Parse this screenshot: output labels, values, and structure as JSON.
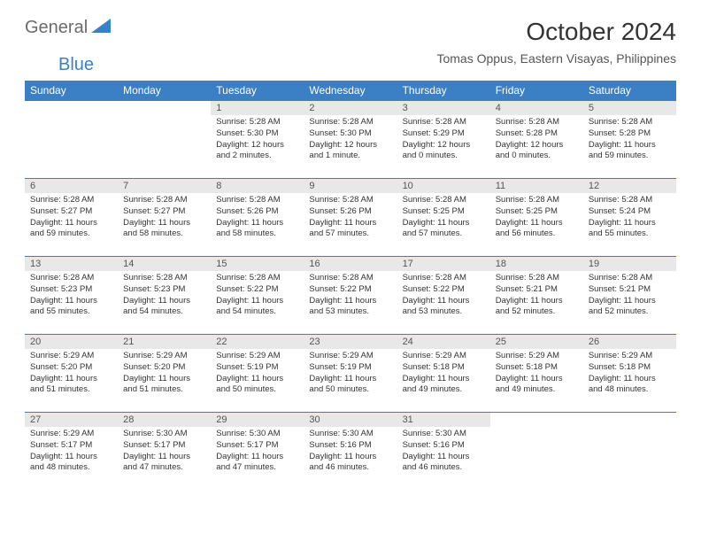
{
  "logo": {
    "text_general": "General",
    "text_blue": "Blue"
  },
  "title": "October 2024",
  "location": "Tomas Oppus, Eastern Visayas, Philippines",
  "colors": {
    "header_bg": "#3b7fc4",
    "header_text": "#ffffff",
    "daynum_bg": "#e8e8e8",
    "border": "#3b7fc4",
    "body_text": "#333333",
    "logo_gray": "#6b6b6b",
    "logo_blue": "#3b7fc4"
  },
  "day_headers": [
    "Sunday",
    "Monday",
    "Tuesday",
    "Wednesday",
    "Thursday",
    "Friday",
    "Saturday"
  ],
  "weeks": [
    [
      {
        "n": "",
        "sunrise": "",
        "sunset": "",
        "daylight": ""
      },
      {
        "n": "",
        "sunrise": "",
        "sunset": "",
        "daylight": ""
      },
      {
        "n": "1",
        "sunrise": "Sunrise: 5:28 AM",
        "sunset": "Sunset: 5:30 PM",
        "daylight": "Daylight: 12 hours and 2 minutes."
      },
      {
        "n": "2",
        "sunrise": "Sunrise: 5:28 AM",
        "sunset": "Sunset: 5:30 PM",
        "daylight": "Daylight: 12 hours and 1 minute."
      },
      {
        "n": "3",
        "sunrise": "Sunrise: 5:28 AM",
        "sunset": "Sunset: 5:29 PM",
        "daylight": "Daylight: 12 hours and 0 minutes."
      },
      {
        "n": "4",
        "sunrise": "Sunrise: 5:28 AM",
        "sunset": "Sunset: 5:28 PM",
        "daylight": "Daylight: 12 hours and 0 minutes."
      },
      {
        "n": "5",
        "sunrise": "Sunrise: 5:28 AM",
        "sunset": "Sunset: 5:28 PM",
        "daylight": "Daylight: 11 hours and 59 minutes."
      }
    ],
    [
      {
        "n": "6",
        "sunrise": "Sunrise: 5:28 AM",
        "sunset": "Sunset: 5:27 PM",
        "daylight": "Daylight: 11 hours and 59 minutes."
      },
      {
        "n": "7",
        "sunrise": "Sunrise: 5:28 AM",
        "sunset": "Sunset: 5:27 PM",
        "daylight": "Daylight: 11 hours and 58 minutes."
      },
      {
        "n": "8",
        "sunrise": "Sunrise: 5:28 AM",
        "sunset": "Sunset: 5:26 PM",
        "daylight": "Daylight: 11 hours and 58 minutes."
      },
      {
        "n": "9",
        "sunrise": "Sunrise: 5:28 AM",
        "sunset": "Sunset: 5:26 PM",
        "daylight": "Daylight: 11 hours and 57 minutes."
      },
      {
        "n": "10",
        "sunrise": "Sunrise: 5:28 AM",
        "sunset": "Sunset: 5:25 PM",
        "daylight": "Daylight: 11 hours and 57 minutes."
      },
      {
        "n": "11",
        "sunrise": "Sunrise: 5:28 AM",
        "sunset": "Sunset: 5:25 PM",
        "daylight": "Daylight: 11 hours and 56 minutes."
      },
      {
        "n": "12",
        "sunrise": "Sunrise: 5:28 AM",
        "sunset": "Sunset: 5:24 PM",
        "daylight": "Daylight: 11 hours and 55 minutes."
      }
    ],
    [
      {
        "n": "13",
        "sunrise": "Sunrise: 5:28 AM",
        "sunset": "Sunset: 5:23 PM",
        "daylight": "Daylight: 11 hours and 55 minutes."
      },
      {
        "n": "14",
        "sunrise": "Sunrise: 5:28 AM",
        "sunset": "Sunset: 5:23 PM",
        "daylight": "Daylight: 11 hours and 54 minutes."
      },
      {
        "n": "15",
        "sunrise": "Sunrise: 5:28 AM",
        "sunset": "Sunset: 5:22 PM",
        "daylight": "Daylight: 11 hours and 54 minutes."
      },
      {
        "n": "16",
        "sunrise": "Sunrise: 5:28 AM",
        "sunset": "Sunset: 5:22 PM",
        "daylight": "Daylight: 11 hours and 53 minutes."
      },
      {
        "n": "17",
        "sunrise": "Sunrise: 5:28 AM",
        "sunset": "Sunset: 5:22 PM",
        "daylight": "Daylight: 11 hours and 53 minutes."
      },
      {
        "n": "18",
        "sunrise": "Sunrise: 5:28 AM",
        "sunset": "Sunset: 5:21 PM",
        "daylight": "Daylight: 11 hours and 52 minutes."
      },
      {
        "n": "19",
        "sunrise": "Sunrise: 5:28 AM",
        "sunset": "Sunset: 5:21 PM",
        "daylight": "Daylight: 11 hours and 52 minutes."
      }
    ],
    [
      {
        "n": "20",
        "sunrise": "Sunrise: 5:29 AM",
        "sunset": "Sunset: 5:20 PM",
        "daylight": "Daylight: 11 hours and 51 minutes."
      },
      {
        "n": "21",
        "sunrise": "Sunrise: 5:29 AM",
        "sunset": "Sunset: 5:20 PM",
        "daylight": "Daylight: 11 hours and 51 minutes."
      },
      {
        "n": "22",
        "sunrise": "Sunrise: 5:29 AM",
        "sunset": "Sunset: 5:19 PM",
        "daylight": "Daylight: 11 hours and 50 minutes."
      },
      {
        "n": "23",
        "sunrise": "Sunrise: 5:29 AM",
        "sunset": "Sunset: 5:19 PM",
        "daylight": "Daylight: 11 hours and 50 minutes."
      },
      {
        "n": "24",
        "sunrise": "Sunrise: 5:29 AM",
        "sunset": "Sunset: 5:18 PM",
        "daylight": "Daylight: 11 hours and 49 minutes."
      },
      {
        "n": "25",
        "sunrise": "Sunrise: 5:29 AM",
        "sunset": "Sunset: 5:18 PM",
        "daylight": "Daylight: 11 hours and 49 minutes."
      },
      {
        "n": "26",
        "sunrise": "Sunrise: 5:29 AM",
        "sunset": "Sunset: 5:18 PM",
        "daylight": "Daylight: 11 hours and 48 minutes."
      }
    ],
    [
      {
        "n": "27",
        "sunrise": "Sunrise: 5:29 AM",
        "sunset": "Sunset: 5:17 PM",
        "daylight": "Daylight: 11 hours and 48 minutes."
      },
      {
        "n": "28",
        "sunrise": "Sunrise: 5:30 AM",
        "sunset": "Sunset: 5:17 PM",
        "daylight": "Daylight: 11 hours and 47 minutes."
      },
      {
        "n": "29",
        "sunrise": "Sunrise: 5:30 AM",
        "sunset": "Sunset: 5:17 PM",
        "daylight": "Daylight: 11 hours and 47 minutes."
      },
      {
        "n": "30",
        "sunrise": "Sunrise: 5:30 AM",
        "sunset": "Sunset: 5:16 PM",
        "daylight": "Daylight: 11 hours and 46 minutes."
      },
      {
        "n": "31",
        "sunrise": "Sunrise: 5:30 AM",
        "sunset": "Sunset: 5:16 PM",
        "daylight": "Daylight: 11 hours and 46 minutes."
      },
      {
        "n": "",
        "sunrise": "",
        "sunset": "",
        "daylight": ""
      },
      {
        "n": "",
        "sunrise": "",
        "sunset": "",
        "daylight": ""
      }
    ]
  ]
}
